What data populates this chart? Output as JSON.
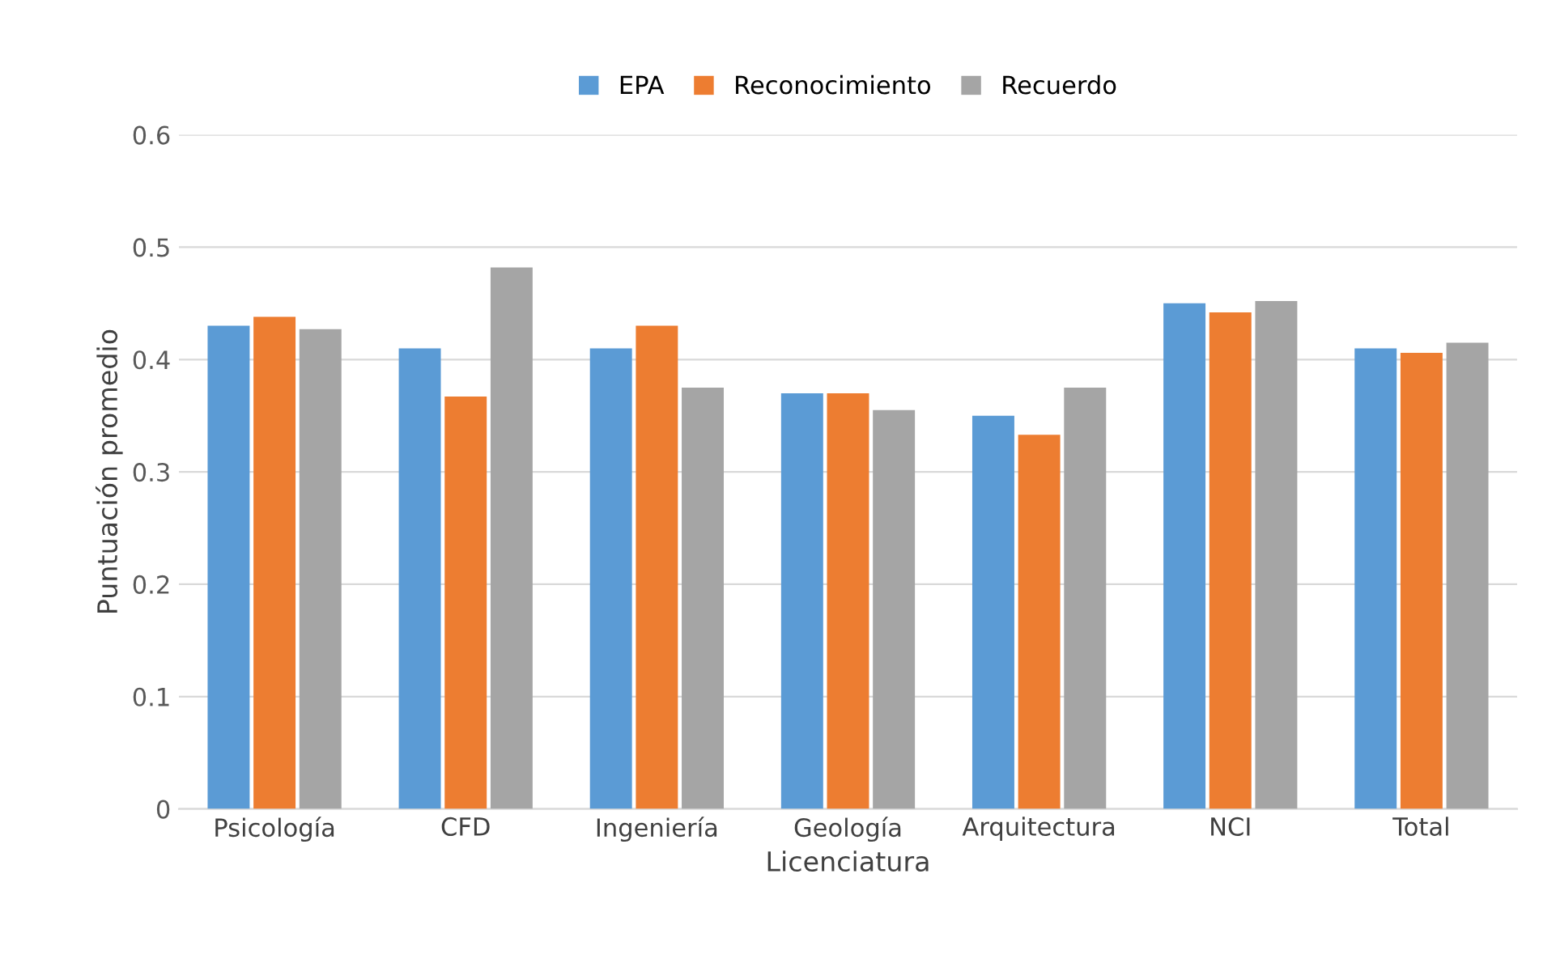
{
  "chart_data": {
    "type": "bar",
    "xlabel": "Licenciatura",
    "ylabel": "Puntuación promedio",
    "categories": [
      "Psicología",
      "CFD",
      "Ingeniería",
      "Geología",
      "Arquitectura",
      "NCI",
      "Total"
    ],
    "series": [
      {
        "name": "EPA",
        "color": "#5b9bd5",
        "values": [
          0.43,
          0.41,
          0.41,
          0.37,
          0.35,
          0.45,
          0.41
        ]
      },
      {
        "name": "Reconocimiento",
        "color": "#ed7d31",
        "values": [
          0.438,
          0.367,
          0.43,
          0.37,
          0.333,
          0.442,
          0.406
        ]
      },
      {
        "name": "Recuerdo",
        "color": "#a5a5a5",
        "values": [
          0.427,
          0.482,
          0.375,
          0.355,
          0.375,
          0.452,
          0.415
        ]
      }
    ],
    "ylim": [
      0,
      0.6
    ],
    "yticks": [
      {
        "value": 0,
        "label": "0"
      },
      0.1,
      0.2,
      0.3,
      0.4,
      0.5,
      0.6
    ],
    "grid": "y",
    "legend": "top"
  }
}
